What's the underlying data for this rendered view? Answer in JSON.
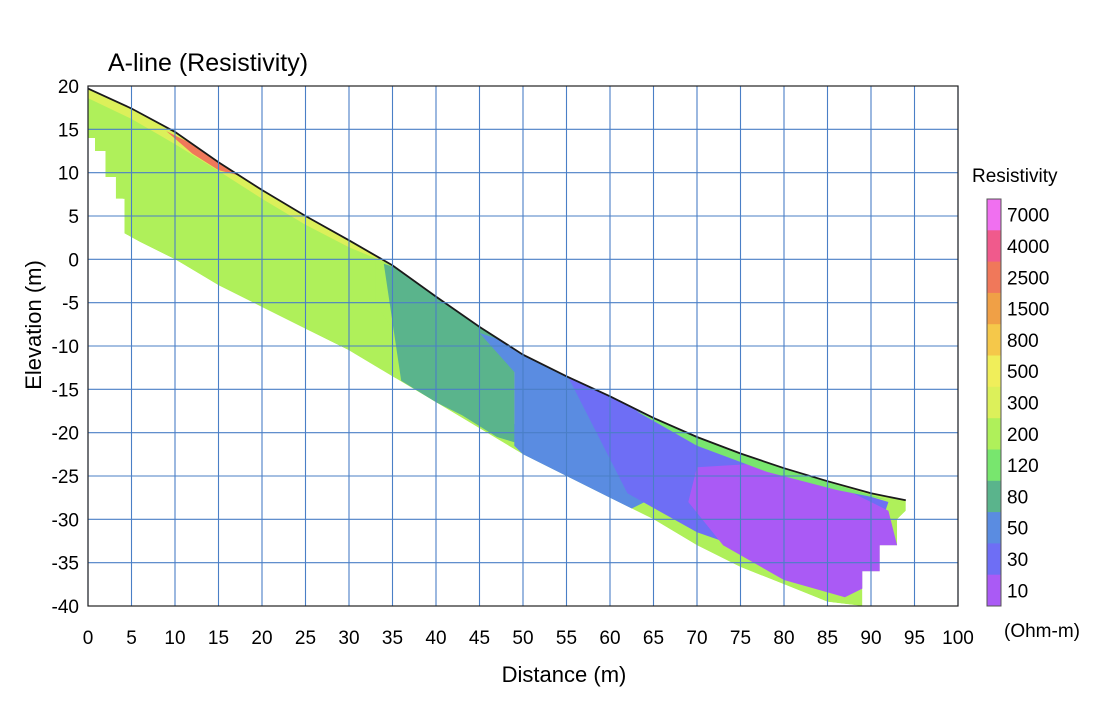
{
  "chart_data": {
    "type": "heatmap",
    "title": "A-line (Resistivity)",
    "xlabel": "Distance (m)",
    "ylabel": "Elevation (m)",
    "xlim": [
      0,
      100
    ],
    "ylim": [
      -40,
      20
    ],
    "x_ticks": [
      "0",
      "5",
      "10",
      "15",
      "20",
      "25",
      "30",
      "35",
      "40",
      "45",
      "50",
      "55",
      "60",
      "65",
      "70",
      "75",
      "80",
      "85",
      "90",
      "95",
      "100"
    ],
    "y_ticks": [
      "20",
      "15",
      "10",
      "5",
      "0",
      "-5",
      "-10",
      "-15",
      "-20",
      "-25",
      "-30",
      "-35",
      "-40"
    ],
    "grid": true,
    "colorbar": {
      "title": "Resistivity",
      "unit": "(Ohm-m)",
      "levels": [
        "7000",
        "4000",
        "2500",
        "1500",
        "800",
        "500",
        "300",
        "200",
        "120",
        "80",
        "50",
        "30",
        "10"
      ],
      "colors": [
        "#f070f0",
        "#f05a8c",
        "#f0785a",
        "#f0a046",
        "#f5c84a",
        "#f0ee5a",
        "#dcf05a",
        "#aff05a",
        "#78e66e",
        "#5ab48c",
        "#5a8ce1",
        "#6e6ef5",
        "#aa5af5"
      ]
    },
    "surface": {
      "x": [
        0,
        5,
        10,
        15,
        20,
        25,
        30,
        35,
        40,
        45,
        50,
        55,
        60,
        65,
        70,
        75,
        80,
        85,
        90,
        94
      ],
      "elevation": [
        19.7,
        17.4,
        14.7,
        11.2,
        8.0,
        5.0,
        2.2,
        -0.7,
        -4.3,
        -7.8,
        -11.0,
        -13.5,
        -15.8,
        -18.3,
        -20.5,
        -22.4,
        -24.1,
        -25.6,
        -27.0,
        -27.8
      ]
    },
    "bottom": {
      "x": [
        0,
        0.8,
        0.8,
        2.0,
        2.0,
        3.2,
        3.2,
        4.2,
        4.2,
        6,
        10,
        15,
        20,
        25,
        30,
        35,
        40,
        45,
        50,
        55,
        60,
        65,
        70,
        75,
        80,
        85,
        89,
        89,
        91,
        91,
        93,
        93,
        94
      ],
      "elevation": [
        14,
        14,
        12.5,
        12.5,
        9.5,
        9.5,
        7,
        7,
        3,
        2,
        0,
        -3,
        -5.5,
        -8,
        -10.5,
        -13.5,
        -16.5,
        -19.5,
        -22.5,
        -25,
        -27.5,
        -30,
        -33,
        -35.5,
        -37.5,
        -39.5,
        -40,
        -36,
        -36,
        -33,
        -33,
        -30,
        -29
      ]
    },
    "zones": [
      {
        "value": 200,
        "x": [
          0,
          33,
          33,
          35,
          35,
          37,
          37,
          34,
          30,
          20,
          10,
          4,
          4,
          0
        ],
        "elevation": [
          19.7,
          2,
          -5,
          -8,
          -11,
          -12,
          -14,
          -13.5,
          -10.5,
          -5.5,
          0,
          3,
          15,
          15
        ]
      },
      {
        "value": 80,
        "x": [
          34,
          37,
          40,
          45,
          49,
          49,
          52,
          52,
          47,
          43,
          40,
          36
        ],
        "elevation": [
          -0.5,
          -1.5,
          -4,
          -7,
          -9,
          -19,
          -19,
          -22,
          -20.5,
          -18,
          -16.5,
          -14
        ]
      },
      {
        "value": 50,
        "x": [
          45,
          52,
          60,
          66,
          68,
          70,
          62,
          58,
          52,
          49,
          49
        ],
        "elevation": [
          -8.5,
          -10.8,
          -15.2,
          -18.5,
          -21,
          -25,
          -29,
          -27.5,
          -24.5,
          -21.5,
          -13
        ]
      },
      {
        "value": 30,
        "x": [
          55,
          62,
          70,
          78,
          86,
          92,
          91,
          80,
          70,
          62
        ],
        "elevation": [
          -13.2,
          -16,
          -20.4,
          -23.5,
          -26.2,
          -28,
          -31,
          -35,
          -31.5,
          -27
        ]
      },
      {
        "value": 10,
        "x": [
          70,
          78,
          86,
          92,
          93,
          91,
          87,
          80,
          73,
          69
        ],
        "elevation": [
          -24,
          -23.5,
          -26,
          -29,
          -33,
          -37,
          -39,
          -37,
          -33,
          -28
        ]
      },
      {
        "value": 120,
        "x": [
          63,
          70,
          78,
          86,
          92,
          86,
          78,
          70
        ],
        "elevation": [
          -17.5,
          -20.3,
          -23.4,
          -26.0,
          -27.8,
          -26.6,
          -24.5,
          -21.5
        ]
      },
      {
        "value": 300,
        "x": [
          0,
          5,
          10,
          15,
          20,
          25,
          30,
          35,
          30,
          25,
          20,
          15,
          10,
          5,
          0
        ],
        "elevation": [
          19.7,
          17.4,
          14.7,
          11.2,
          8.0,
          5.0,
          2.2,
          -0.7,
          1.4,
          4.0,
          7.0,
          10.2,
          13.3,
          16.2,
          18.6
        ]
      },
      {
        "value": 2500,
        "x": [
          9,
          12,
          15,
          18,
          15,
          12
        ],
        "elevation": [
          14.8,
          13.3,
          11.2,
          9.5,
          10.3,
          12.2
        ]
      }
    ]
  }
}
